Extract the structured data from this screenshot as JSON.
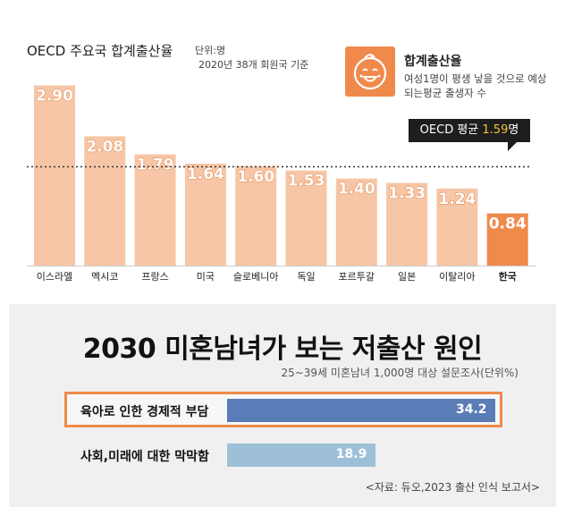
{
  "top_panel": {
    "title": "OECD 주요국 합계출산율",
    "unit": "단위:명",
    "basis": "2020년 38개 회원국 기준",
    "definition_title": "합계출산율",
    "definition_text": "여성1명이 평생 낳을 것으로 예상되는평균 출생자 수",
    "average_label": "OECD 평균",
    "average_value": "1.59",
    "average_suffix": "명",
    "icon": "baby-face-icon"
  },
  "bottom_panel": {
    "title": "2030 미혼남녀가 보는 저출산 원인",
    "survey": "25~39세 미혼남녀 1,000명 대상 설문조사(단위%)",
    "source": "<자료: 듀오,2023 출산 인식 보고서>"
  },
  "colors": {
    "bar": "#f6c6a6",
    "bar_highlight": "#f08a4b",
    "hbar_primary": "#5a7db7",
    "hbar_secondary": "#9dc0d8",
    "highlight_border": "#f08a4b"
  },
  "chart_data": [
    {
      "type": "bar",
      "title": "OECD 주요국 합계출산율",
      "categories": [
        "이스라엘",
        "멕시코",
        "프랑스",
        "미국",
        "슬로베니아",
        "독일",
        "포르투갈",
        "일본",
        "이탈리아",
        "한국"
      ],
      "values": [
        2.9,
        2.08,
        1.79,
        1.64,
        1.6,
        1.53,
        1.4,
        1.33,
        1.24,
        0.84
      ],
      "value_labels": [
        "2.90",
        "2.08",
        "1.79",
        "1.64",
        "1.60",
        "1.53",
        "1.40",
        "1.33",
        "1.24",
        "0.84"
      ],
      "highlight": "한국",
      "reference_line": {
        "label": "OECD 평균",
        "value": 1.59
      },
      "grid": false
    },
    {
      "type": "bar",
      "orientation": "horizontal",
      "title": "2030 미혼남녀가 보는 저출산 원인",
      "categories": [
        "육아로 인한 경제적 부담",
        "사회,미래에 대한 막막함"
      ],
      "values": [
        34.2,
        18.9
      ],
      "value_labels": [
        "34.2",
        "18.9"
      ],
      "highlight": "육아로 인한 경제적 부담"
    }
  ]
}
